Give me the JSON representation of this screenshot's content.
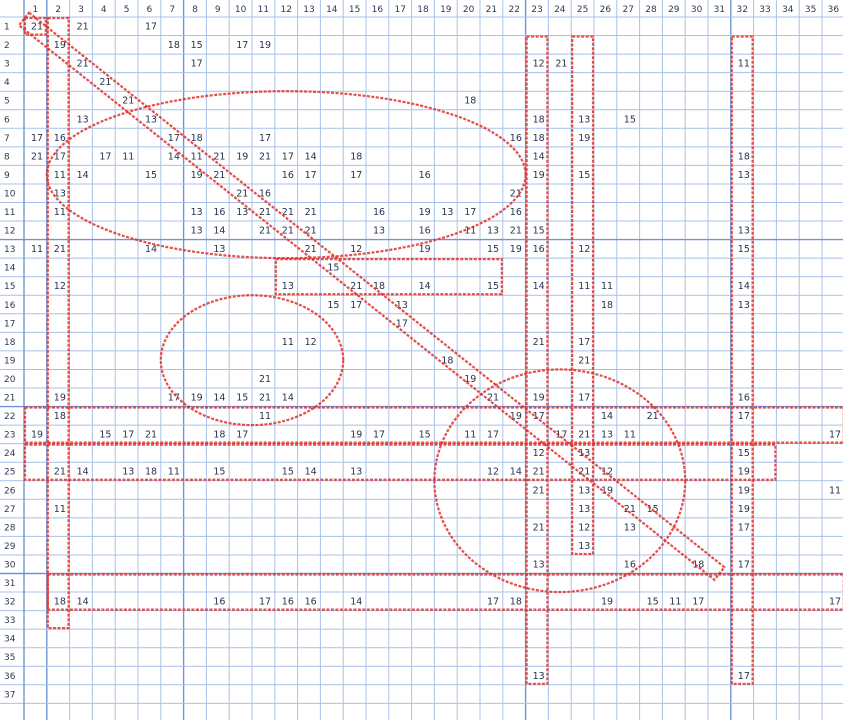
{
  "sheet": {
    "column_headers": [
      "1",
      "2",
      "3",
      "4",
      "5",
      "6",
      "7",
      "8",
      "9",
      "10",
      "11",
      "12",
      "13",
      "14",
      "15",
      "16",
      "17",
      "18",
      "19",
      "20",
      "21",
      "22",
      "23",
      "24",
      "25",
      "26",
      "27",
      "28",
      "29",
      "30",
      "31",
      "32",
      "33",
      "34",
      "35",
      "36",
      "3"
    ],
    "row_headers": [
      "1",
      "2",
      "3",
      "4",
      "5",
      "6",
      "7",
      "8",
      "9",
      "10",
      "11",
      "12",
      "13",
      "14",
      "15",
      "16",
      "17",
      "18",
      "19",
      "20",
      "21",
      "22",
      "23",
      "24",
      "25",
      "26",
      "27",
      "28",
      "29",
      "30",
      "31",
      "32",
      "33",
      "34",
      "35",
      "36",
      "37"
    ],
    "cells": [
      {
        "r": 1,
        "c": 1,
        "v": "21"
      },
      {
        "r": 1,
        "c": 3,
        "v": "21"
      },
      {
        "r": 1,
        "c": 6,
        "v": "17"
      },
      {
        "r": 2,
        "c": 2,
        "v": "19"
      },
      {
        "r": 2,
        "c": 7,
        "v": "18"
      },
      {
        "r": 2,
        "c": 8,
        "v": "15"
      },
      {
        "r": 2,
        "c": 10,
        "v": "17"
      },
      {
        "r": 2,
        "c": 11,
        "v": "19"
      },
      {
        "r": 3,
        "c": 3,
        "v": "21"
      },
      {
        "r": 3,
        "c": 8,
        "v": "17"
      },
      {
        "r": 3,
        "c": 23,
        "v": "12"
      },
      {
        "r": 3,
        "c": 24,
        "v": "21"
      },
      {
        "r": 3,
        "c": 32,
        "v": "11"
      },
      {
        "r": 4,
        "c": 4,
        "v": "21"
      },
      {
        "r": 5,
        "c": 5,
        "v": "21"
      },
      {
        "r": 5,
        "c": 20,
        "v": "18"
      },
      {
        "r": 6,
        "c": 3,
        "v": "13"
      },
      {
        "r": 6,
        "c": 6,
        "v": "13"
      },
      {
        "r": 6,
        "c": 23,
        "v": "18"
      },
      {
        "r": 6,
        "c": 25,
        "v": "13"
      },
      {
        "r": 6,
        "c": 27,
        "v": "15"
      },
      {
        "r": 7,
        "c": 1,
        "v": "17"
      },
      {
        "r": 7,
        "c": 2,
        "v": "16"
      },
      {
        "r": 7,
        "c": 7,
        "v": "17"
      },
      {
        "r": 7,
        "c": 8,
        "v": "18"
      },
      {
        "r": 7,
        "c": 11,
        "v": "17"
      },
      {
        "r": 7,
        "c": 22,
        "v": "16"
      },
      {
        "r": 7,
        "c": 23,
        "v": "18"
      },
      {
        "r": 7,
        "c": 25,
        "v": "19"
      },
      {
        "r": 8,
        "c": 1,
        "v": "21"
      },
      {
        "r": 8,
        "c": 2,
        "v": "17"
      },
      {
        "r": 8,
        "c": 4,
        "v": "17"
      },
      {
        "r": 8,
        "c": 5,
        "v": "11"
      },
      {
        "r": 8,
        "c": 7,
        "v": "14"
      },
      {
        "r": 8,
        "c": 8,
        "v": "11"
      },
      {
        "r": 8,
        "c": 9,
        "v": "21"
      },
      {
        "r": 8,
        "c": 10,
        "v": "19"
      },
      {
        "r": 8,
        "c": 11,
        "v": "21"
      },
      {
        "r": 8,
        "c": 12,
        "v": "17"
      },
      {
        "r": 8,
        "c": 13,
        "v": "14"
      },
      {
        "r": 8,
        "c": 15,
        "v": "18"
      },
      {
        "r": 8,
        "c": 23,
        "v": "14"
      },
      {
        "r": 8,
        "c": 32,
        "v": "18"
      },
      {
        "r": 9,
        "c": 2,
        "v": "11"
      },
      {
        "r": 9,
        "c": 3,
        "v": "14"
      },
      {
        "r": 9,
        "c": 6,
        "v": "15"
      },
      {
        "r": 9,
        "c": 8,
        "v": "19"
      },
      {
        "r": 9,
        "c": 9,
        "v": "21"
      },
      {
        "r": 9,
        "c": 12,
        "v": "16"
      },
      {
        "r": 9,
        "c": 13,
        "v": "17"
      },
      {
        "r": 9,
        "c": 15,
        "v": "17"
      },
      {
        "r": 9,
        "c": 18,
        "v": "16"
      },
      {
        "r": 9,
        "c": 23,
        "v": "19"
      },
      {
        "r": 9,
        "c": 25,
        "v": "15"
      },
      {
        "r": 9,
        "c": 32,
        "v": "13"
      },
      {
        "r": 10,
        "c": 2,
        "v": "13"
      },
      {
        "r": 10,
        "c": 10,
        "v": "21"
      },
      {
        "r": 10,
        "c": 11,
        "v": "16"
      },
      {
        "r": 10,
        "c": 22,
        "v": "21"
      },
      {
        "r": 11,
        "c": 2,
        "v": "11"
      },
      {
        "r": 11,
        "c": 8,
        "v": "13"
      },
      {
        "r": 11,
        "c": 9,
        "v": "16"
      },
      {
        "r": 11,
        "c": 10,
        "v": "13"
      },
      {
        "r": 11,
        "c": 11,
        "v": "21"
      },
      {
        "r": 11,
        "c": 12,
        "v": "21"
      },
      {
        "r": 11,
        "c": 13,
        "v": "21"
      },
      {
        "r": 11,
        "c": 16,
        "v": "16"
      },
      {
        "r": 11,
        "c": 18,
        "v": "19"
      },
      {
        "r": 11,
        "c": 19,
        "v": "13"
      },
      {
        "r": 11,
        "c": 20,
        "v": "17"
      },
      {
        "r": 11,
        "c": 22,
        "v": "16"
      },
      {
        "r": 12,
        "c": 8,
        "v": "13"
      },
      {
        "r": 12,
        "c": 9,
        "v": "14"
      },
      {
        "r": 12,
        "c": 11,
        "v": "21"
      },
      {
        "r": 12,
        "c": 12,
        "v": "21"
      },
      {
        "r": 12,
        "c": 13,
        "v": "21"
      },
      {
        "r": 12,
        "c": 16,
        "v": "13"
      },
      {
        "r": 12,
        "c": 18,
        "v": "16"
      },
      {
        "r": 12,
        "c": 20,
        "v": "11"
      },
      {
        "r": 12,
        "c": 21,
        "v": "13"
      },
      {
        "r": 12,
        "c": 22,
        "v": "21"
      },
      {
        "r": 12,
        "c": 23,
        "v": "15"
      },
      {
        "r": 12,
        "c": 32,
        "v": "13"
      },
      {
        "r": 13,
        "c": 1,
        "v": "11"
      },
      {
        "r": 13,
        "c": 2,
        "v": "21"
      },
      {
        "r": 13,
        "c": 6,
        "v": "14"
      },
      {
        "r": 13,
        "c": 9,
        "v": "13"
      },
      {
        "r": 13,
        "c": 13,
        "v": "21"
      },
      {
        "r": 13,
        "c": 15,
        "v": "12"
      },
      {
        "r": 13,
        "c": 18,
        "v": "19"
      },
      {
        "r": 13,
        "c": 21,
        "v": "15"
      },
      {
        "r": 13,
        "c": 22,
        "v": "19"
      },
      {
        "r": 13,
        "c": 23,
        "v": "16"
      },
      {
        "r": 13,
        "c": 25,
        "v": "12"
      },
      {
        "r": 13,
        "c": 32,
        "v": "15"
      },
      {
        "r": 14,
        "c": 14,
        "v": "15"
      },
      {
        "r": 15,
        "c": 2,
        "v": "12"
      },
      {
        "r": 15,
        "c": 12,
        "v": "13"
      },
      {
        "r": 15,
        "c": 15,
        "v": "21"
      },
      {
        "r": 15,
        "c": 16,
        "v": "18"
      },
      {
        "r": 15,
        "c": 18,
        "v": "14"
      },
      {
        "r": 15,
        "c": 21,
        "v": "15"
      },
      {
        "r": 15,
        "c": 23,
        "v": "14"
      },
      {
        "r": 15,
        "c": 25,
        "v": "11"
      },
      {
        "r": 15,
        "c": 26,
        "v": "11"
      },
      {
        "r": 15,
        "c": 32,
        "v": "14"
      },
      {
        "r": 16,
        "c": 14,
        "v": "15"
      },
      {
        "r": 16,
        "c": 15,
        "v": "17"
      },
      {
        "r": 16,
        "c": 17,
        "v": "13"
      },
      {
        "r": 16,
        "c": 26,
        "v": "18"
      },
      {
        "r": 16,
        "c": 32,
        "v": "13"
      },
      {
        "r": 17,
        "c": 17,
        "v": "17"
      },
      {
        "r": 18,
        "c": 12,
        "v": "11"
      },
      {
        "r": 18,
        "c": 13,
        "v": "12"
      },
      {
        "r": 18,
        "c": 23,
        "v": "21"
      },
      {
        "r": 18,
        "c": 25,
        "v": "17"
      },
      {
        "r": 19,
        "c": 19,
        "v": "18"
      },
      {
        "r": 19,
        "c": 25,
        "v": "21"
      },
      {
        "r": 20,
        "c": 11,
        "v": "21"
      },
      {
        "r": 20,
        "c": 20,
        "v": "19"
      },
      {
        "r": 21,
        "c": 2,
        "v": "19"
      },
      {
        "r": 21,
        "c": 7,
        "v": "17"
      },
      {
        "r": 21,
        "c": 8,
        "v": "19"
      },
      {
        "r": 21,
        "c": 9,
        "v": "14"
      },
      {
        "r": 21,
        "c": 10,
        "v": "15"
      },
      {
        "r": 21,
        "c": 11,
        "v": "21"
      },
      {
        "r": 21,
        "c": 12,
        "v": "14"
      },
      {
        "r": 21,
        "c": 21,
        "v": "21"
      },
      {
        "r": 21,
        "c": 23,
        "v": "19"
      },
      {
        "r": 21,
        "c": 25,
        "v": "17"
      },
      {
        "r": 21,
        "c": 32,
        "v": "16"
      },
      {
        "r": 22,
        "c": 2,
        "v": "18"
      },
      {
        "r": 22,
        "c": 11,
        "v": "11"
      },
      {
        "r": 22,
        "c": 22,
        "v": "19"
      },
      {
        "r": 22,
        "c": 23,
        "v": "17"
      },
      {
        "r": 22,
        "c": 26,
        "v": "14"
      },
      {
        "r": 22,
        "c": 28,
        "v": "21"
      },
      {
        "r": 22,
        "c": 32,
        "v": "17"
      },
      {
        "r": 23,
        "c": 1,
        "v": "19"
      },
      {
        "r": 23,
        "c": 4,
        "v": "15"
      },
      {
        "r": 23,
        "c": 5,
        "v": "17"
      },
      {
        "r": 23,
        "c": 6,
        "v": "21"
      },
      {
        "r": 23,
        "c": 9,
        "v": "18"
      },
      {
        "r": 23,
        "c": 10,
        "v": "17"
      },
      {
        "r": 23,
        "c": 15,
        "v": "19"
      },
      {
        "r": 23,
        "c": 16,
        "v": "17"
      },
      {
        "r": 23,
        "c": 18,
        "v": "15"
      },
      {
        "r": 23,
        "c": 20,
        "v": "11"
      },
      {
        "r": 23,
        "c": 21,
        "v": "17"
      },
      {
        "r": 23,
        "c": 24,
        "v": "17"
      },
      {
        "r": 23,
        "c": 25,
        "v": "21"
      },
      {
        "r": 23,
        "c": 26,
        "v": "13"
      },
      {
        "r": 23,
        "c": 27,
        "v": "11"
      },
      {
        "r": 23,
        "c": 36,
        "v": "17"
      },
      {
        "r": 24,
        "c": 23,
        "v": "12"
      },
      {
        "r": 24,
        "c": 25,
        "v": "13"
      },
      {
        "r": 24,
        "c": 32,
        "v": "15"
      },
      {
        "r": 25,
        "c": 2,
        "v": "21"
      },
      {
        "r": 25,
        "c": 3,
        "v": "14"
      },
      {
        "r": 25,
        "c": 5,
        "v": "13"
      },
      {
        "r": 25,
        "c": 6,
        "v": "18"
      },
      {
        "r": 25,
        "c": 7,
        "v": "11"
      },
      {
        "r": 25,
        "c": 9,
        "v": "15"
      },
      {
        "r": 25,
        "c": 12,
        "v": "15"
      },
      {
        "r": 25,
        "c": 13,
        "v": "14"
      },
      {
        "r": 25,
        "c": 15,
        "v": "13"
      },
      {
        "r": 25,
        "c": 21,
        "v": "12"
      },
      {
        "r": 25,
        "c": 22,
        "v": "14"
      },
      {
        "r": 25,
        "c": 23,
        "v": "21"
      },
      {
        "r": 25,
        "c": 25,
        "v": "21"
      },
      {
        "r": 25,
        "c": 26,
        "v": "12"
      },
      {
        "r": 25,
        "c": 32,
        "v": "19"
      },
      {
        "r": 26,
        "c": 23,
        "v": "21"
      },
      {
        "r": 26,
        "c": 25,
        "v": "13"
      },
      {
        "r": 26,
        "c": 26,
        "v": "19"
      },
      {
        "r": 26,
        "c": 32,
        "v": "19"
      },
      {
        "r": 26,
        "c": 36,
        "v": "11"
      },
      {
        "r": 27,
        "c": 2,
        "v": "11"
      },
      {
        "r": 27,
        "c": 25,
        "v": "13"
      },
      {
        "r": 27,
        "c": 27,
        "v": "21"
      },
      {
        "r": 27,
        "c": 28,
        "v": "15"
      },
      {
        "r": 27,
        "c": 32,
        "v": "19"
      },
      {
        "r": 28,
        "c": 23,
        "v": "21"
      },
      {
        "r": 28,
        "c": 25,
        "v": "12"
      },
      {
        "r": 28,
        "c": 27,
        "v": "13"
      },
      {
        "r": 28,
        "c": 32,
        "v": "17"
      },
      {
        "r": 29,
        "c": 25,
        "v": "13"
      },
      {
        "r": 30,
        "c": 23,
        "v": "13"
      },
      {
        "r": 30,
        "c": 27,
        "v": "16"
      },
      {
        "r": 30,
        "c": 30,
        "v": "18"
      },
      {
        "r": 30,
        "c": 32,
        "v": "17"
      },
      {
        "r": 32,
        "c": 2,
        "v": "18"
      },
      {
        "r": 32,
        "c": 3,
        "v": "14"
      },
      {
        "r": 32,
        "c": 9,
        "v": "16"
      },
      {
        "r": 32,
        "c": 11,
        "v": "17"
      },
      {
        "r": 32,
        "c": 12,
        "v": "16"
      },
      {
        "r": 32,
        "c": 13,
        "v": "16"
      },
      {
        "r": 32,
        "c": 15,
        "v": "14"
      },
      {
        "r": 32,
        "c": 21,
        "v": "17"
      },
      {
        "r": 32,
        "c": 22,
        "v": "18"
      },
      {
        "r": 32,
        "c": 26,
        "v": "19"
      },
      {
        "r": 32,
        "c": 28,
        "v": "15"
      },
      {
        "r": 32,
        "c": 29,
        "v": "11"
      },
      {
        "r": 32,
        "c": 30,
        "v": "17"
      },
      {
        "r": 32,
        "c": 36,
        "v": "17"
      },
      {
        "r": 36,
        "c": 23,
        "v": "13"
      },
      {
        "r": 36,
        "c": 32,
        "v": "17"
      }
    ],
    "annotations": [
      {
        "kind": "rect",
        "c1": 1,
        "c2": 1,
        "r1": 1,
        "r2": 1
      },
      {
        "kind": "rect",
        "c1": 2,
        "c2": 2,
        "r1": 1,
        "r2": 33
      },
      {
        "kind": "diagonal",
        "c1": 1,
        "r1": 1,
        "c2": 31,
        "r2": 30
      },
      {
        "kind": "ellipse",
        "c1": 2,
        "c2": 22,
        "r1": 5,
        "r2": 13
      },
      {
        "kind": "rect",
        "c1": 12,
        "c2": 21,
        "r1": 14,
        "r2": 15
      },
      {
        "kind": "ellipse",
        "c1": 7,
        "c2": 14,
        "r1": 16,
        "r2": 22
      },
      {
        "kind": "rect",
        "c1": 23,
        "c2": 23,
        "r1": 2,
        "r2": 36
      },
      {
        "kind": "rect",
        "c1": 25,
        "c2": 25,
        "r1": 2,
        "r2": 29
      },
      {
        "kind": "rect",
        "c1": 32,
        "c2": 32,
        "r1": 2,
        "r2": 36
      },
      {
        "kind": "rect",
        "c1": 1,
        "c2": 36,
        "r1": 22,
        "r2": 23
      },
      {
        "kind": "rect",
        "c1": 1,
        "c2": 33,
        "r1": 24,
        "r2": 25
      },
      {
        "kind": "ellipse",
        "c1": 19,
        "c2": 29,
        "r1": 20,
        "r2": 31
      },
      {
        "kind": "rect",
        "c1": 2,
        "c2": 36,
        "r1": 31,
        "r2": 32
      }
    ],
    "colors": {
      "grid": "#a9c1ea",
      "grid_major": "#6f95d6",
      "header_text": "#2d3a56",
      "value_text": "#27344f",
      "annotation": "#e0302a"
    }
  }
}
